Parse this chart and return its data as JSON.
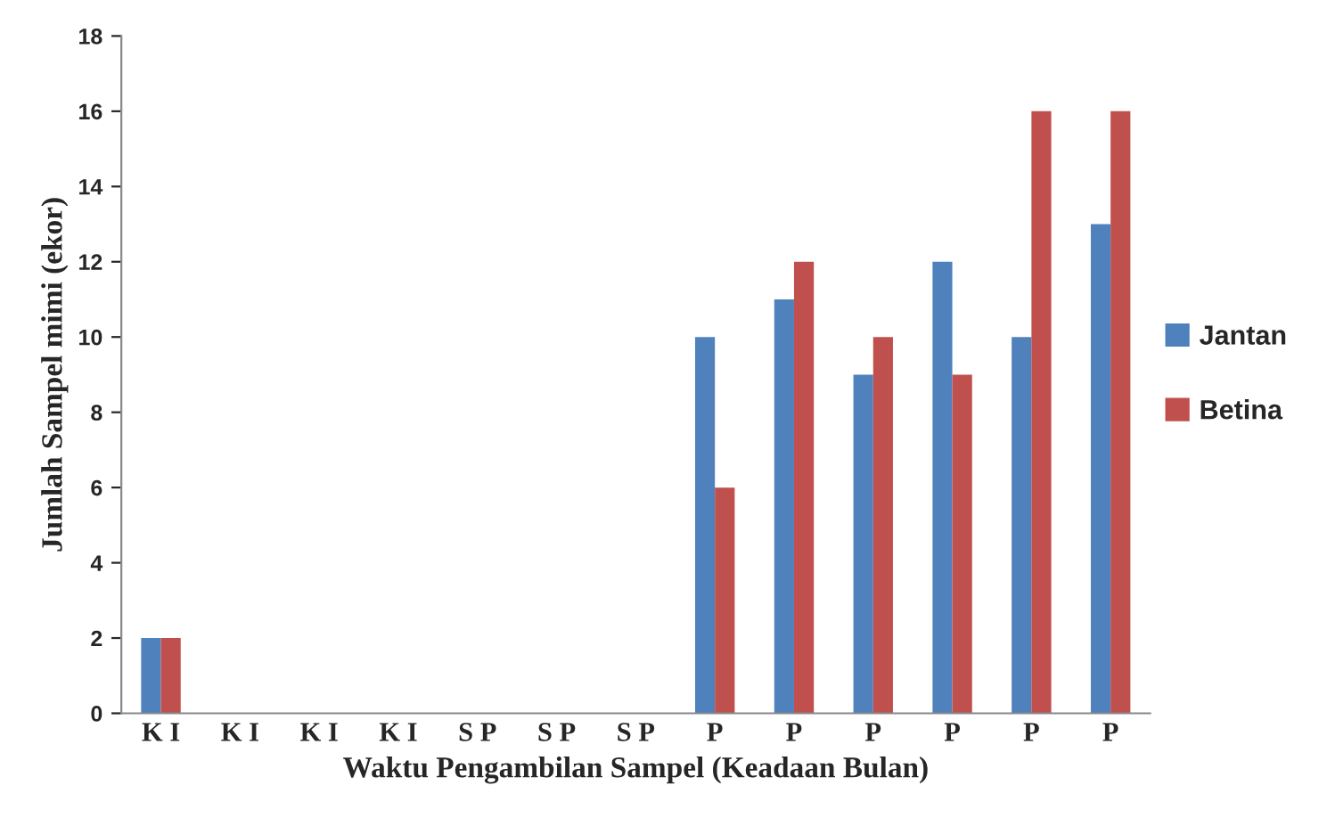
{
  "chart_data": {
    "type": "bar",
    "xlabel": "Waktu Pengambilan Sampel (Keadaan Bulan)",
    "ylabel": "Jumlah Sampel mimi (ekor)",
    "categories": [
      "K I",
      "K I",
      "K I",
      "K I",
      "S P",
      "S P",
      "S P",
      "P",
      "P",
      "P",
      "P",
      "P",
      "P"
    ],
    "series": [
      {
        "name": "Jantan",
        "color": "#4f81bd",
        "values": [
          2,
          0,
          0,
          0,
          0,
          0,
          0,
          10,
          11,
          9,
          12,
          10,
          13
        ]
      },
      {
        "name": "Betina",
        "color": "#c0504d",
        "values": [
          2,
          0,
          0,
          0,
          0,
          0,
          0,
          6,
          12,
          10,
          9,
          16,
          16
        ]
      }
    ],
    "ylim": [
      0,
      18
    ],
    "yticks": [
      0,
      2,
      4,
      6,
      8,
      10,
      12,
      14,
      16,
      18
    ],
    "grid": false,
    "legend": "right"
  }
}
